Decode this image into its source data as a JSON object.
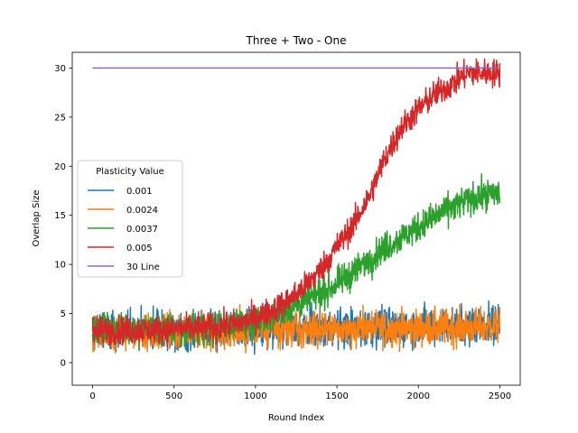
{
  "chart_data": {
    "type": "line",
    "title": "Three + Two - One",
    "xlabel": "Round Index",
    "ylabel": "Overlap Size",
    "xlim": [
      -125,
      2625
    ],
    "ylim": [
      -2.3,
      31.6
    ],
    "xticks": [
      0,
      500,
      1000,
      1500,
      2000,
      2500
    ],
    "yticks": [
      0,
      5,
      10,
      15,
      20,
      25,
      30
    ],
    "grid": false,
    "legend": {
      "title": "Plasticity Value",
      "placement": "center-left"
    },
    "series": [
      {
        "name": "0.001",
        "color": "#1f77b4",
        "x": [
          0,
          250,
          500,
          750,
          1000,
          1250,
          1500,
          1750,
          2000,
          2250,
          2500
        ],
        "y": [
          3.3,
          3.3,
          3.3,
          3.3,
          3.4,
          3.5,
          3.5,
          3.6,
          3.7,
          3.8,
          4.0
        ],
        "noise": 1.4
      },
      {
        "name": "0.0024",
        "color": "#ff7f0e",
        "x": [
          0,
          250,
          500,
          750,
          1000,
          1250,
          1500,
          1750,
          2000,
          2250,
          2500
        ],
        "y": [
          3.0,
          3.1,
          3.2,
          3.3,
          3.3,
          3.4,
          3.4,
          3.5,
          3.5,
          3.6,
          3.7
        ],
        "noise": 1.3
      },
      {
        "name": "0.0037",
        "color": "#2ca02c",
        "x": [
          0,
          250,
          500,
          750,
          1000,
          1100,
          1200,
          1300,
          1400,
          1500,
          1600,
          1700,
          1800,
          1900,
          2000,
          2100,
          2200,
          2300,
          2400,
          2500
        ],
        "y": [
          3.3,
          3.3,
          3.4,
          3.6,
          4.2,
          4.8,
          5.5,
          6.2,
          7.0,
          8.0,
          9.2,
          10.5,
          11.8,
          12.8,
          13.8,
          14.8,
          15.8,
          16.5,
          17.0,
          17.3
        ],
        "noise": 1.1
      },
      {
        "name": "0.005",
        "color": "#d62728",
        "x": [
          0,
          250,
          500,
          750,
          900,
          1000,
          1100,
          1200,
          1300,
          1400,
          1500,
          1600,
          1700,
          1800,
          1900,
          2000,
          2100,
          2200,
          2300,
          2400,
          2500
        ],
        "y": [
          3.3,
          3.3,
          3.4,
          3.6,
          4.0,
          4.6,
          5.3,
          6.3,
          7.7,
          9.5,
          11.8,
          14.0,
          17.0,
          21.0,
          24.0,
          25.8,
          27.3,
          28.3,
          29.5,
          29.5,
          29.5
        ],
        "noise": 1.0
      },
      {
        "name": "30 Line",
        "color": "#9467bd",
        "x": [
          0,
          2500
        ],
        "y": [
          30,
          30
        ],
        "noise": 0
      }
    ]
  }
}
